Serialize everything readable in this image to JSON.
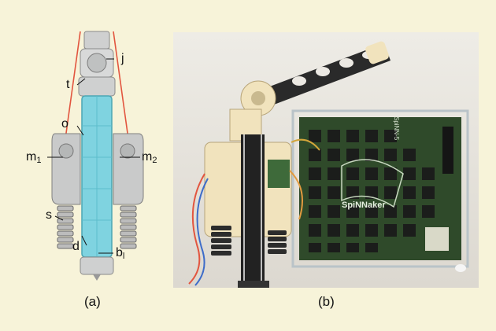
{
  "figure": {
    "colors": {
      "background": "#f7f3d9",
      "bone": "#cfd0d0",
      "tube": "#7fd3e0",
      "tendon": "#e2553f",
      "board": "#2f4a2a"
    },
    "panel_a": {
      "caption": "(a)",
      "labels": {
        "j": "j",
        "t": "t",
        "o": "o",
        "m1": "m",
        "m1_sub": "1",
        "m2": "m",
        "m2_sub": "2",
        "s": "s",
        "d": "d",
        "bl": "b",
        "bl_sub": "l"
      }
    },
    "panel_b": {
      "caption": "(b)",
      "board_text": "SpiNNaker",
      "board_model": "SpiNN-5"
    }
  }
}
